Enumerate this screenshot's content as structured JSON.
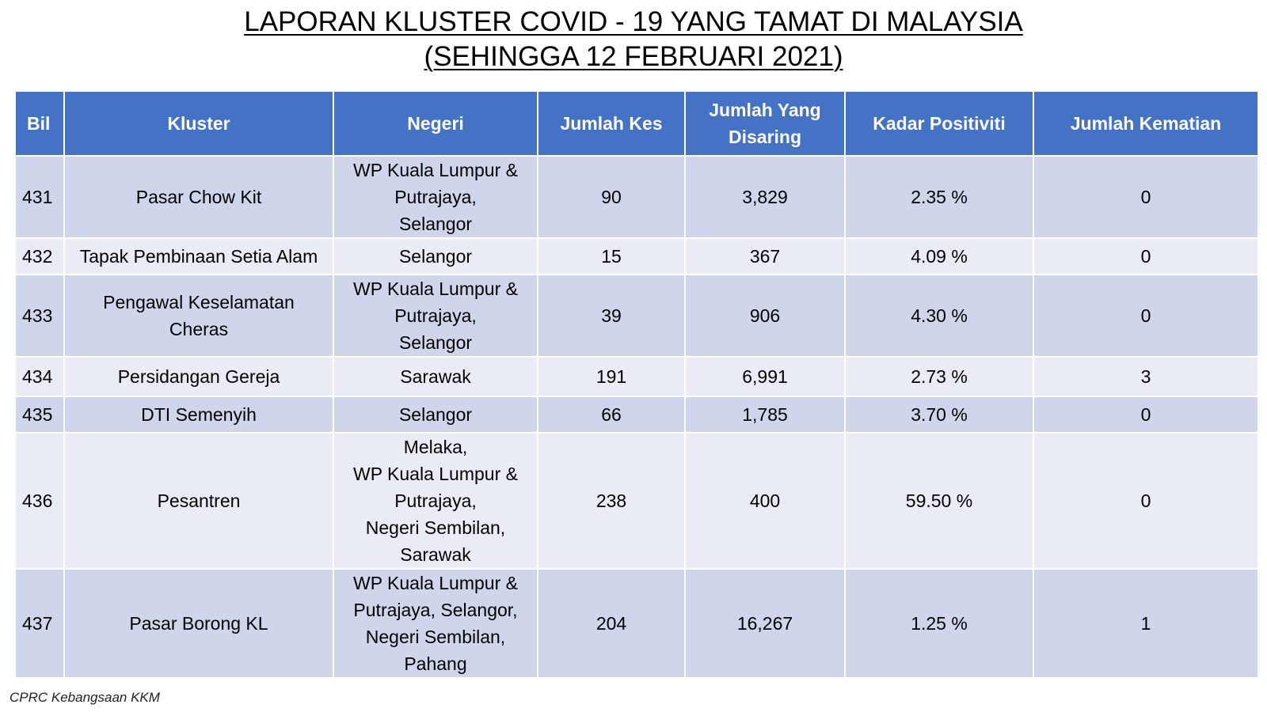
{
  "title": {
    "line1": "LAPORAN KLUSTER COVID - 19 YANG TAMAT DI MALAYSIA",
    "line2": "(SEHINGGA 12 FEBRUARI 2021)"
  },
  "table": {
    "headers": {
      "bil": "Bil",
      "kluster": "Kluster",
      "negeri": "Negeri",
      "jumlah_kes": "Jumlah Kes",
      "jumlah_disaring_1": "Jumlah Yang",
      "jumlah_disaring_2": "Disaring",
      "kadar_positiviti": "Kadar Positiviti",
      "jumlah_kematian": "Jumlah Kematian"
    },
    "rows": [
      {
        "bil": "431",
        "kluster": [
          "Pasar Chow Kit"
        ],
        "negeri": [
          "WP Kuala Lumpur &",
          "Putrajaya,",
          "Selangor"
        ],
        "jumlah_kes": "90",
        "jumlah_disaring": "3,829",
        "kadar_positiviti": "2.35 %",
        "jumlah_kematian": "0"
      },
      {
        "bil": "432",
        "kluster": [
          "Tapak Pembinaan Setia Alam"
        ],
        "negeri": [
          "Selangor"
        ],
        "jumlah_kes": "15",
        "jumlah_disaring": "367",
        "kadar_positiviti": "4.09 %",
        "jumlah_kematian": "0"
      },
      {
        "bil": "433",
        "kluster": [
          "Pengawal Keselamatan",
          "Cheras"
        ],
        "negeri": [
          "WP Kuala Lumpur &",
          "Putrajaya,",
          "Selangor"
        ],
        "jumlah_kes": "39",
        "jumlah_disaring": "906",
        "kadar_positiviti": "4.30 %",
        "jumlah_kematian": "0"
      },
      {
        "bil": "434",
        "kluster": [
          "Persidangan Gereja"
        ],
        "negeri": [
          "Sarawak"
        ],
        "jumlah_kes": "191",
        "jumlah_disaring": "6,991",
        "kadar_positiviti": "2.73 %",
        "jumlah_kematian": "3"
      },
      {
        "bil": "435",
        "kluster": [
          "DTI Semenyih"
        ],
        "negeri": [
          "Selangor"
        ],
        "jumlah_kes": "66",
        "jumlah_disaring": "1,785",
        "kadar_positiviti": "3.70 %",
        "jumlah_kematian": "0"
      },
      {
        "bil": "436",
        "kluster": [
          "Pesantren"
        ],
        "negeri": [
          "Melaka,",
          "WP Kuala Lumpur &",
          "Putrajaya,",
          "Negeri Sembilan,",
          "Sarawak"
        ],
        "jumlah_kes": "238",
        "jumlah_disaring": "400",
        "kadar_positiviti": "59.50 %",
        "jumlah_kematian": "0"
      },
      {
        "bil": "437",
        "kluster": [
          "Pasar Borong KL"
        ],
        "negeri": [
          "WP Kuala Lumpur &",
          "Putrajaya,  Selangor,",
          "Negeri Sembilan,",
          "Pahang"
        ],
        "jumlah_kes": "204",
        "jumlah_disaring": "16,267",
        "kadar_positiviti": "1.25 %",
        "jumlah_kematian": "1"
      }
    ]
  },
  "footer": {
    "source": "CPRC Kebangsaan KKM"
  },
  "colors": {
    "header_bg": "#4472c4",
    "row_odd_bg": "#cfd5ea",
    "row_even_bg": "#e9ebf5"
  }
}
